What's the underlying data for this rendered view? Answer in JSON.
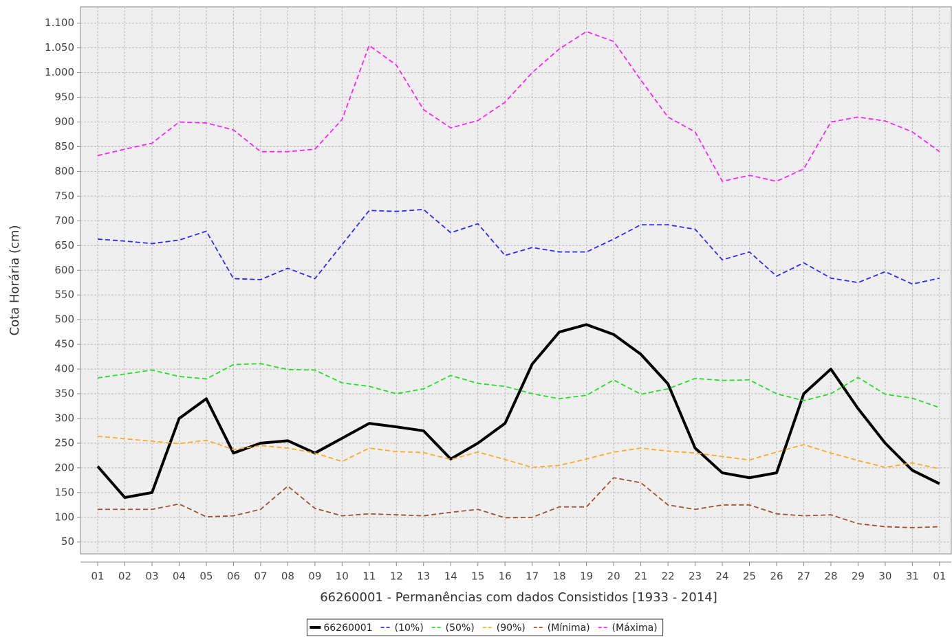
{
  "chart_data": {
    "type": "line",
    "xlabel": "66260001 - Permanências com dados Consistidos [1933 - 2014]",
    "ylabel": "Cota Horária (cm)",
    "categories": [
      "01",
      "02",
      "03",
      "04",
      "05",
      "06",
      "07",
      "08",
      "09",
      "10",
      "11",
      "12",
      "13",
      "14",
      "15",
      "16",
      "17",
      "18",
      "19",
      "20",
      "21",
      "22",
      "23",
      "24",
      "25",
      "26",
      "27",
      "28",
      "29",
      "30",
      "31",
      "01"
    ],
    "series": [
      {
        "name": "66260001",
        "color": "#000000",
        "dash": false,
        "values": [
          203,
          140,
          150,
          300,
          340,
          230,
          250,
          255,
          230,
          260,
          290,
          283,
          275,
          218,
          250,
          290,
          410,
          475,
          490,
          470,
          430,
          370,
          240,
          190,
          180,
          190,
          350,
          400,
          320,
          250,
          195,
          168
        ]
      },
      {
        "name": "(10%)",
        "color": "#2a2aff",
        "dash": true,
        "values": [
          663,
          659,
          654,
          661,
          679,
          583,
          581,
          604,
          583,
          652,
          721,
          719,
          723,
          676,
          694,
          630,
          646,
          637,
          637,
          663,
          692,
          692,
          683,
          621,
          637,
          588,
          615,
          584,
          575,
          597,
          572,
          584
        ]
      },
      {
        "name": "(50%)",
        "color": "#22e022",
        "dash": true,
        "values": [
          382,
          390,
          398,
          385,
          380,
          409,
          411,
          399,
          398,
          372,
          365,
          350,
          360,
          387,
          371,
          365,
          350,
          340,
          347,
          378,
          349,
          360,
          381,
          377,
          378,
          350,
          336,
          350,
          383,
          349,
          341,
          322
        ]
      },
      {
        "name": "(90%)",
        "color": "#ffaa22",
        "dash": true,
        "values": [
          264,
          259,
          254,
          249,
          256,
          237,
          245,
          240,
          230,
          213,
          240,
          233,
          231,
          217,
          232,
          217,
          201,
          205,
          218,
          232,
          240,
          234,
          230,
          223,
          216,
          232,
          247,
          230,
          215,
          201,
          210,
          198
        ]
      },
      {
        "name": "(Mínima)",
        "color": "#a0522d",
        "dash": true,
        "values": [
          116,
          116,
          116,
          127,
          101,
          103,
          116,
          163,
          118,
          103,
          107,
          105,
          103,
          110,
          116,
          99,
          100,
          121,
          121,
          180,
          170,
          125,
          116,
          125,
          125,
          107,
          103,
          105,
          87,
          81,
          79,
          81
        ]
      },
      {
        "name": "(Máxima)",
        "color": "#ff22ff",
        "dash": true,
        "values": [
          832,
          845,
          857,
          900,
          898,
          884,
          840,
          840,
          845,
          905,
          1055,
          1015,
          925,
          888,
          903,
          940,
          1000,
          1048,
          1083,
          1063,
          985,
          910,
          880,
          780,
          792,
          780,
          805,
          900,
          910,
          902,
          880,
          840
        ]
      }
    ],
    "ylim": [
      26,
      1133
    ],
    "yticks": [
      50,
      100,
      150,
      200,
      250,
      300,
      350,
      400,
      450,
      500,
      550,
      600,
      650,
      700,
      750,
      800,
      850,
      900,
      950,
      {
        "value": 1000,
        "label": "1.000"
      },
      {
        "value": 1050,
        "label": "1.050"
      },
      {
        "value": 1100,
        "label": "1.100"
      }
    ],
    "grid": true,
    "legend": "bottom"
  }
}
